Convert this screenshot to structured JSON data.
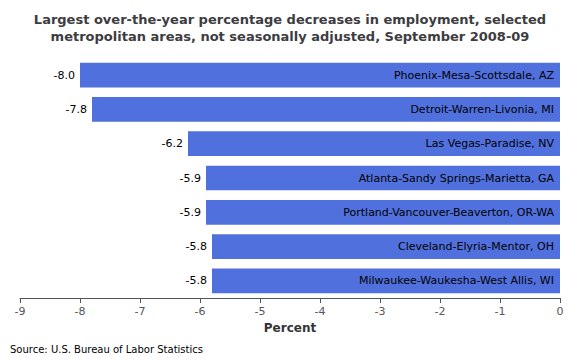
{
  "chart_data": {
    "type": "bar",
    "orientation": "horizontal",
    "title": "Largest over-the-year percentage decreases in employment, selected\nmetropolitan areas, not seasonally adjusted, September 2008-09",
    "categories": [
      "Milwaukee-Waukesha-West Allis, WI",
      "Cleveland-Elyria-Mentor, OH",
      "Portland-Vancouver-Beaverton, OR-WA",
      "Atlanta-Sandy Springs-Marietta, GA",
      "Las Vegas-Paradise, NV",
      "Detroit-Warren-Livonia, MI",
      "Phoenix-Mesa-Scottsdale, AZ"
    ],
    "values": [
      -5.8,
      -5.8,
      -5.9,
      -5.9,
      -6.2,
      -7.8,
      -8.0
    ],
    "value_labels": [
      "-5.8",
      "-5.8",
      "-5.9",
      "-5.9",
      "-6.2",
      "-7.8",
      "-8.0"
    ],
    "data_labels": true,
    "xlabel": "Percent",
    "xlim": [
      -9,
      0
    ],
    "xticks": [
      -9,
      -8,
      -7,
      -6,
      -5,
      -4,
      -3,
      -2,
      -1,
      0
    ],
    "grid": false,
    "source": "Source: U.S. Bureau of Labor Statistics"
  }
}
